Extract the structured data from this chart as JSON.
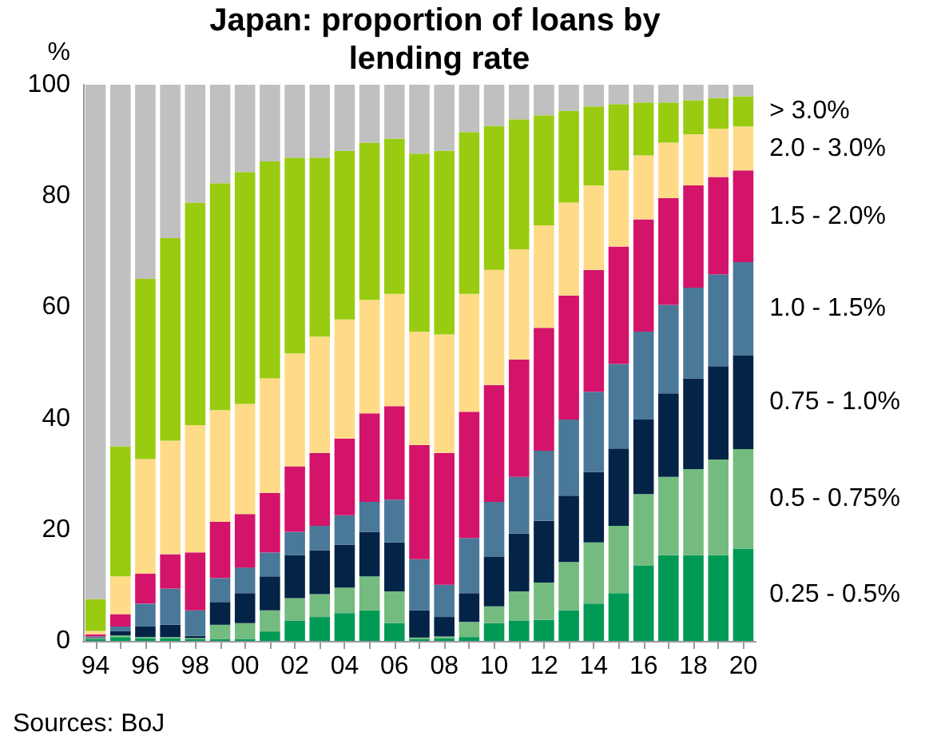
{
  "chart_data": {
    "type": "bar",
    "stacked": true,
    "title": "Japan: proportion of loans by lending rate",
    "ylabel": "%",
    "annotations": [
      "Sources: BoJ"
    ],
    "categories": [
      "94",
      null,
      "96",
      null,
      "98",
      null,
      "00",
      null,
      "02",
      null,
      "04",
      null,
      "06",
      null,
      "08",
      null,
      "10",
      null,
      "12",
      null,
      "14",
      null,
      "16",
      null,
      "18",
      null,
      "20"
    ],
    "ylim": [
      0,
      100
    ],
    "yticks": [
      0,
      20,
      40,
      60,
      80,
      100
    ],
    "grid": false,
    "legend": false,
    "series": [
      {
        "name": "0.25 - 0.5%",
        "color": "#009a56",
        "values": [
          0.3,
          0.7,
          0.5,
          0.5,
          0.3,
          0.3,
          0.3,
          1.7,
          3.6,
          4.3,
          5.0,
          5.5,
          3.2,
          0.3,
          0.5,
          0.7,
          3.2,
          3.6,
          3.8,
          5.5,
          6.7,
          8.6,
          13.5,
          15.4,
          15.4,
          15.4,
          16.6
        ]
      },
      {
        "name": "0.5 - 0.75%",
        "color": "#74bb7f",
        "values": [
          0.2,
          0.3,
          0.2,
          0.2,
          0.2,
          2.6,
          2.9,
          3.8,
          4.1,
          4.1,
          4.6,
          6.1,
          5.7,
          0.3,
          0.3,
          2.7,
          3.0,
          5.3,
          6.7,
          8.7,
          11.0,
          12.1,
          12.9,
          14.1,
          15.5,
          17.2,
          17.9
        ]
      },
      {
        "name": "0.75 - 1.0%",
        "color": "#032447",
        "values": [
          0.1,
          0.8,
          1.9,
          2.2,
          0.4,
          4.1,
          5.4,
          6.1,
          7.7,
          7.9,
          7.7,
          8.0,
          8.8,
          4.9,
          3.5,
          5.2,
          8.9,
          10.4,
          11.1,
          11.9,
          12.7,
          13.9,
          13.4,
          15.0,
          16.3,
          16.8,
          16.8
        ]
      },
      {
        "name": "1.0 - 1.5%",
        "color": "#4a7898",
        "values": [
          0.2,
          0.8,
          4.1,
          6.5,
          4.6,
          4.3,
          4.6,
          4.3,
          4.2,
          4.4,
          5.3,
          5.4,
          7.7,
          9.2,
          5.8,
          9.9,
          9.9,
          10.2,
          12.6,
          13.7,
          14.4,
          15.2,
          15.8,
          15.9,
          16.3,
          16.5,
          16.8
        ]
      },
      {
        "name": "1.5 - 2.0%",
        "color": "#d4136a",
        "values": [
          0.4,
          2.2,
          5.4,
          6.2,
          10.4,
          10.1,
          9.6,
          10.7,
          11.8,
          13.1,
          13.8,
          15.9,
          16.8,
          20.5,
          23.7,
          22.7,
          21.0,
          21.1,
          22.1,
          22.3,
          21.9,
          21.1,
          20.2,
          19.2,
          18.4,
          17.5,
          16.5
        ]
      },
      {
        "name": "2.0 - 3.0%",
        "color": "#ffdb88",
        "values": [
          0.6,
          6.8,
          20.6,
          20.4,
          22.9,
          20.1,
          19.8,
          20.6,
          20.3,
          20.9,
          21.4,
          20.4,
          20.2,
          20.4,
          21.3,
          21.2,
          20.7,
          19.8,
          18.4,
          16.7,
          15.2,
          13.7,
          11.5,
          10.0,
          9.2,
          8.7,
          7.9
        ]
      },
      {
        "name": "> 3.0%",
        "color": "#99cc11",
        "values": [
          5.7,
          23.4,
          32.4,
          36.4,
          40.0,
          40.8,
          41.7,
          39.0,
          35.2,
          32.2,
          30.3,
          28.3,
          27.9,
          32.0,
          33.0,
          29.1,
          25.9,
          23.4,
          19.8,
          16.5,
          14.2,
          11.9,
          9.5,
          7.2,
          6.1,
          5.5,
          5.4
        ]
      },
      {
        "color": "#c0c0c0",
        "values": [
          92.5,
          65.0,
          34.9,
          27.6,
          21.2,
          17.7,
          15.7,
          13.8,
          13.1,
          13.1,
          11.9,
          10.4,
          9.7,
          12.4,
          11.9,
          8.5,
          7.4,
          6.2,
          5.5,
          4.7,
          3.9,
          3.5,
          3.2,
          3.2,
          2.8,
          2.4,
          2.1
        ]
      }
    ]
  }
}
